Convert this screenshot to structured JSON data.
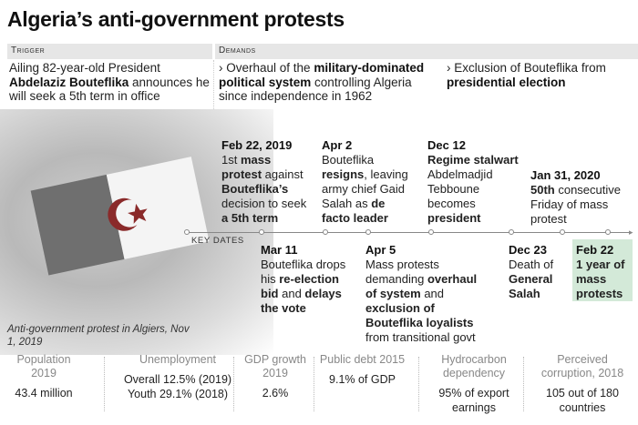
{
  "title": "Algeria’s anti-government protests",
  "trigger": {
    "label": "Trigger",
    "text": [
      {
        "t": "Ailing 82-year-old President "
      },
      {
        "t": "Abdelaziz Bouteflika",
        "b": true
      },
      {
        "t": " announces he will seek a 5th term in office"
      }
    ]
  },
  "demands": {
    "label": "Demands",
    "items": [
      [
        {
          "t": "› Overhaul of the "
        },
        {
          "t": "military-dominated political system",
          "b": true
        },
        {
          "t": " controlling Algeria since independence in 1962"
        }
      ],
      [
        {
          "t": "› Exclusion of Bouteflika from "
        },
        {
          "t": "presidential election",
          "b": true
        }
      ]
    ]
  },
  "photo_caption": "Anti-government protest in Algiers, Nov 1, 2019",
  "timeline": {
    "label": "Key dates",
    "highlight_color": "#d3e9d8",
    "events": [
      {
        "date": "Feb 22, 2019",
        "pos": "top",
        "text": [
          {
            "t": "1st "
          },
          {
            "t": "mass protest",
            "b": true
          },
          {
            "t": " against "
          },
          {
            "t": "Bouteflika’s",
            "b": true
          },
          {
            "t": " decision to seek "
          },
          {
            "t": "a 5th term",
            "b": true
          }
        ]
      },
      {
        "date": "Mar 11",
        "pos": "bottom",
        "text": [
          {
            "t": "Bouteflika drops his "
          },
          {
            "t": "re-election bid",
            "b": true
          },
          {
            "t": " and "
          },
          {
            "t": "delays the vote",
            "b": true
          }
        ]
      },
      {
        "date": "Apr 2",
        "pos": "top",
        "text": [
          {
            "t": "Bouteflika "
          },
          {
            "t": "resigns",
            "b": true
          },
          {
            "t": ", leaving army chief Gaid Salah as "
          },
          {
            "t": "de facto leader",
            "b": true
          }
        ]
      },
      {
        "date": "Apr 5",
        "pos": "bottom",
        "text": [
          {
            "t": "Mass protests demanding "
          },
          {
            "t": "overhaul of system",
            "b": true
          },
          {
            "t": " and "
          },
          {
            "t": "exclusion of Bouteflika loyalists",
            "b": true
          },
          {
            "t": " from transitional govt"
          }
        ]
      },
      {
        "date": "Dec 12",
        "pos": "top",
        "text": [
          {
            "t": "Regime stalwart",
            "b": true
          },
          {
            "t": " Abdelmadjid Tebboune becomes "
          },
          {
            "t": "president",
            "b": true
          }
        ]
      },
      {
        "date": "Dec 23",
        "pos": "bottom",
        "text": [
          {
            "t": "Death of "
          },
          {
            "t": "General Salah",
            "b": true
          }
        ]
      },
      {
        "date": "Jan 31, 2020",
        "pos": "top",
        "text": [
          {
            "t": "50th",
            "b": true
          },
          {
            "t": " consecutive Friday of mass protest"
          }
        ]
      },
      {
        "date": "Feb 22",
        "pos": "bottom",
        "text": [
          {
            "t": "1 year of mass protests",
            "b": true
          }
        ]
      }
    ]
  },
  "stats": [
    {
      "label": "Population 2019",
      "value": "43.4 million"
    },
    {
      "label": "Unemployment",
      "value": "Overall 12.5% (2019) Youth 29.1% (2018)"
    },
    {
      "label": "GDP growth 2019",
      "value": "2.6%"
    },
    {
      "label": "Public debt 2015",
      "value": "9.1% of GDP"
    },
    {
      "label": "Hydrocarbon dependency",
      "value": "95% of export earnings"
    },
    {
      "label": "Perceived corruption, 2018",
      "value": "105  out of 180 countries"
    }
  ]
}
